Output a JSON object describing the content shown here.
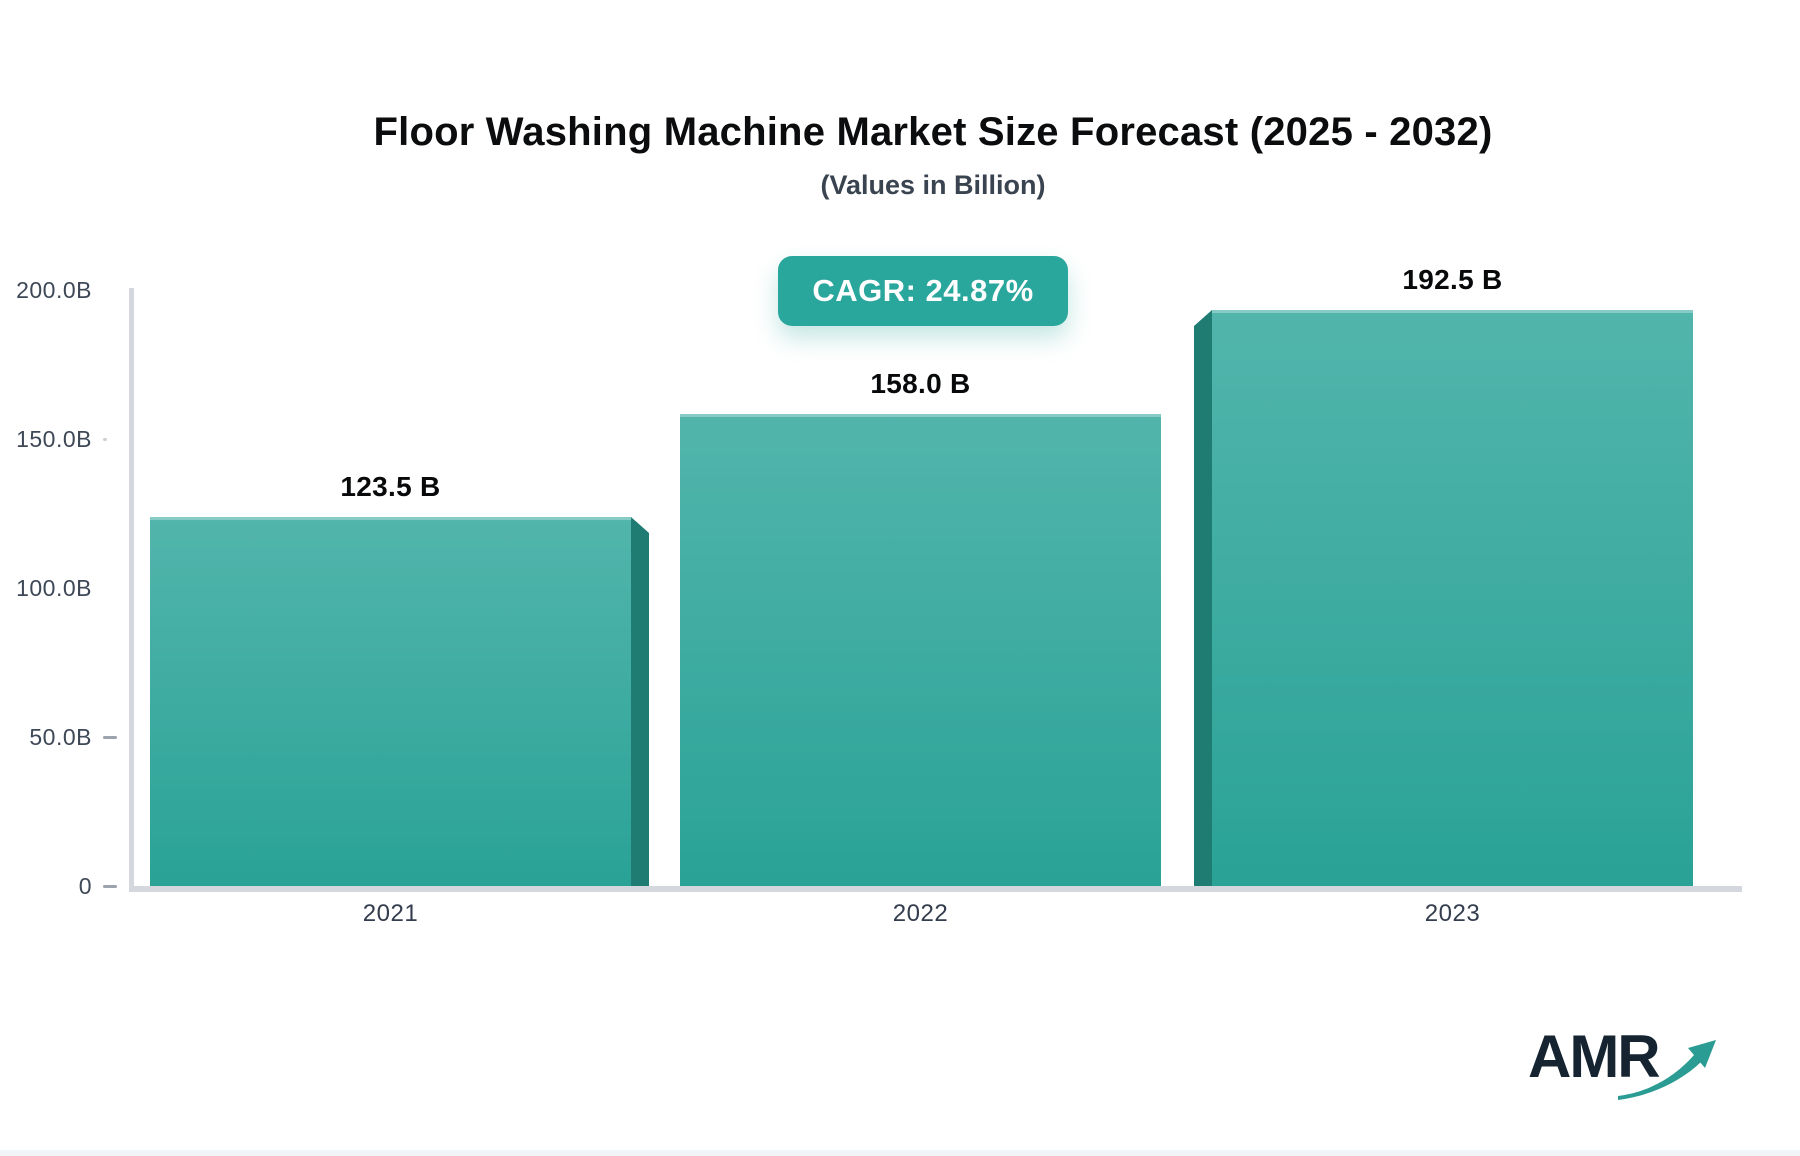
{
  "header": {
    "title": "Floor Washing Machine Market Size Forecast (2025 - 2032)",
    "subtitle": "(Values in Billion)"
  },
  "badge": {
    "label": "CAGR: 24.87%"
  },
  "chart_data": {
    "type": "bar",
    "categories": [
      "2021",
      "2022",
      "2023"
    ],
    "values": [
      123.5,
      158.0,
      192.5
    ],
    "value_labels": [
      "123.5 B",
      "158.0 B",
      "192.5 B"
    ],
    "series_unit": "Billion USD",
    "title": "Floor Washing Machine Market Size Forecast (2025 - 2032)",
    "xlabel": "",
    "ylabel": "",
    "ylim": [
      0,
      200
    ],
    "y_tick_labels": [
      "200.0B",
      "150.0B",
      "100.0B",
      "50.0B",
      "0"
    ],
    "grid": "off",
    "legend": "none",
    "bar_3d_side": [
      "right",
      "none",
      "left"
    ]
  },
  "colors": {
    "bar_top": "#52b5ac",
    "bar_bottom": "#2aa296",
    "bar_side": "#1e7c73",
    "badge_bg": "#2aa79c",
    "axis_line": "#d4d8de",
    "tick_text": "#3e4857",
    "arrow": "#2a9c93"
  },
  "logo": {
    "text": "AMR"
  },
  "icons": {
    "arrow_up_right": "trend-arrow"
  }
}
